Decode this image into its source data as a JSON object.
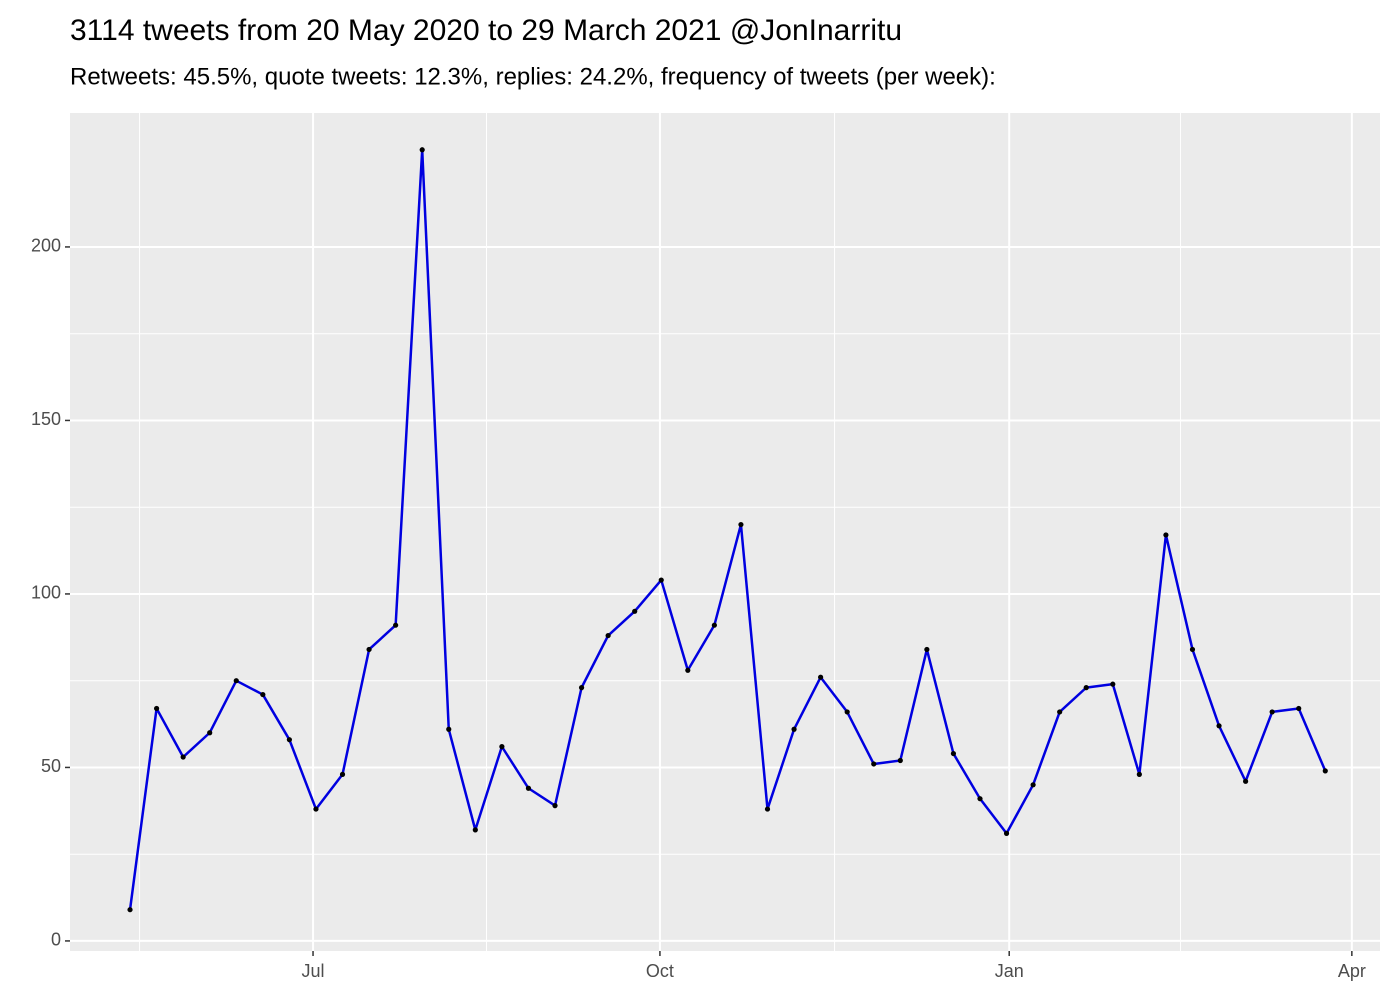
{
  "chart_data": {
    "type": "line",
    "title": "3114 tweets from 20 May 2020 to 29 March 2021 @JonInarritu",
    "subtitle": "Retweets: 45.5%, quote tweets: 12.3%, replies: 24.2%, frequency of tweets (per week):",
    "categories": [
      null,
      null,
      null,
      null,
      null,
      null,
      null,
      null,
      null,
      null,
      null,
      null,
      null,
      null,
      null,
      null,
      null,
      null,
      null,
      null,
      null,
      null,
      null,
      null,
      null,
      null,
      null,
      null,
      null,
      null,
      null,
      null,
      null,
      null,
      null,
      null,
      null,
      null,
      null,
      null,
      null,
      null,
      null,
      null,
      null,
      null
    ],
    "series": [
      {
        "color": "#0000e0",
        "values": [
          9,
          67,
          53,
          60,
          75,
          71,
          58,
          38,
          48,
          84,
          91,
          228,
          61,
          32,
          56,
          44,
          39,
          73,
          88,
          95,
          104,
          78,
          91,
          120,
          38,
          61,
          76,
          66,
          51,
          52,
          84,
          54,
          41,
          31,
          45,
          66,
          73,
          74,
          48,
          117,
          84,
          62,
          46,
          66,
          67,
          49
        ]
      }
    ],
    "xlim": [
      -2.26,
      47.06
    ],
    "xticks": [
      {
        "value": 6.89,
        "label": "Jul"
      },
      {
        "value": 19.95,
        "label": "Oct"
      },
      {
        "value": 33.1,
        "label": "Jan"
      },
      {
        "value": 46.0,
        "label": "Apr"
      }
    ],
    "ylim": [
      -2.9,
      238.6
    ],
    "yticks": [
      0,
      50,
      100,
      150,
      200
    ],
    "grid": true
  }
}
